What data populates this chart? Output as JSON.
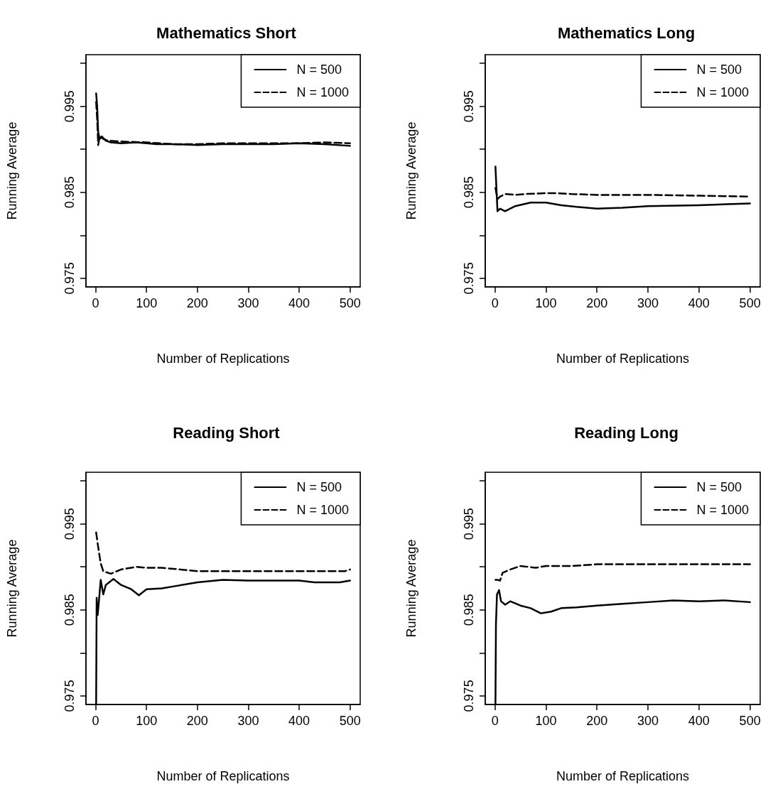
{
  "chart_data": [
    {
      "type": "line",
      "title": "Mathematics Short",
      "xlabel": "Number of Replications",
      "ylabel": "Running Average",
      "xlim": [
        -19,
        520
      ],
      "ylim": [
        0.974,
        1.001
      ],
      "xticks": [
        0,
        100,
        200,
        300,
        400,
        500
      ],
      "yticks": [
        0.975,
        {
          "value": 0.98,
          "label": null
        },
        0.985,
        {
          "value": 0.99,
          "label": null
        },
        0.995,
        {
          "value": 1.0,
          "label": null
        }
      ],
      "grid": false,
      "legend": "top right",
      "series": [
        {
          "name": "N = 500",
          "color": "#000000",
          "line_style": "solid",
          "x": [
            1,
            3,
            5,
            8,
            12,
            20,
            30,
            50,
            80,
            120,
            150,
            200,
            250,
            300,
            350,
            400,
            450,
            500
          ],
          "values": [
            0.9965,
            0.995,
            0.992,
            0.9912,
            0.9915,
            0.991,
            0.9908,
            0.9907,
            0.9908,
            0.9906,
            0.9906,
            0.9905,
            0.9906,
            0.9906,
            0.9906,
            0.9907,
            0.9906,
            0.9904
          ]
        },
        {
          "name": "N = 1000",
          "color": "#000000",
          "line_style": "dashed",
          "x": [
            1,
            3,
            5,
            8,
            15,
            25,
            50,
            100,
            150,
            200,
            250,
            300,
            400,
            450,
            500
          ],
          "values": [
            0.9955,
            0.9935,
            0.9905,
            0.9915,
            0.9912,
            0.991,
            0.9909,
            0.9908,
            0.9906,
            0.9906,
            0.9907,
            0.9907,
            0.9907,
            0.9908,
            0.9907
          ]
        }
      ]
    },
    {
      "type": "line",
      "title": "Mathematics Long",
      "xlabel": "Number of Replications",
      "ylabel": "Running Average",
      "xlim": [
        -19,
        520
      ],
      "ylim": [
        0.974,
        1.001
      ],
      "xticks": [
        0,
        100,
        200,
        300,
        400,
        500
      ],
      "yticks": [
        0.975,
        {
          "value": 0.98,
          "label": null
        },
        0.985,
        {
          "value": 0.99,
          "label": null
        },
        0.995,
        {
          "value": 1.0,
          "label": null
        }
      ],
      "grid": false,
      "legend": "top right",
      "series": [
        {
          "name": "N = 500",
          "color": "#000000",
          "line_style": "solid",
          "x": [
            1,
            5,
            10,
            20,
            40,
            70,
            100,
            130,
            160,
            200,
            250,
            300,
            400,
            500
          ],
          "values": [
            0.988,
            0.9828,
            0.9831,
            0.9828,
            0.9834,
            0.9838,
            0.9838,
            0.9835,
            0.9833,
            0.9831,
            0.9832,
            0.9834,
            0.9835,
            0.9837
          ]
        },
        {
          "name": "N = 1000",
          "color": "#000000",
          "line_style": "dashed",
          "x": [
            1,
            5,
            10,
            20,
            40,
            60,
            100,
            120,
            150,
            200,
            300,
            400,
            500
          ],
          "values": [
            0.9855,
            0.9842,
            0.9845,
            0.9848,
            0.9847,
            0.9848,
            0.9849,
            0.9849,
            0.9848,
            0.9847,
            0.9847,
            0.9846,
            0.9845
          ]
        }
      ]
    },
    {
      "type": "line",
      "title": "Reading Short",
      "xlabel": "Number of Replications",
      "ylabel": "Running Average",
      "xlim": [
        -19,
        520
      ],
      "ylim": [
        0.974,
        1.001
      ],
      "xticks": [
        0,
        100,
        200,
        300,
        400,
        500
      ],
      "yticks": [
        0.975,
        {
          "value": 0.98,
          "label": null
        },
        0.985,
        {
          "value": 0.99,
          "label": null
        },
        0.995,
        {
          "value": 1.0,
          "label": null
        }
      ],
      "grid": false,
      "legend": "top right",
      "series": [
        {
          "name": "N = 500",
          "color": "#000000",
          "line_style": "solid",
          "x": [
            1,
            2,
            4,
            6,
            10,
            15,
            20,
            35,
            50,
            70,
            85,
            100,
            130,
            160,
            200,
            250,
            300,
            400,
            430,
            480,
            500
          ],
          "values": [
            0.974,
            0.9864,
            0.9844,
            0.9857,
            0.9885,
            0.9868,
            0.9879,
            0.9886,
            0.9879,
            0.9874,
            0.9867,
            0.9874,
            0.9875,
            0.9878,
            0.9882,
            0.9885,
            0.9884,
            0.9884,
            0.9882,
            0.9882,
            0.9884
          ]
        },
        {
          "name": "N = 1000",
          "color": "#000000",
          "line_style": "dashed",
          "x": [
            1,
            5,
            10,
            15,
            30,
            50,
            80,
            100,
            130,
            200,
            300,
            400,
            490,
            500
          ],
          "values": [
            0.994,
            0.9923,
            0.9904,
            0.9895,
            0.9892,
            0.9897,
            0.99,
            0.9899,
            0.9899,
            0.9895,
            0.9895,
            0.9895,
            0.9895,
            0.9897
          ]
        }
      ]
    },
    {
      "type": "line",
      "title": "Reading Long",
      "xlabel": "Number of Replications",
      "ylabel": "Running Average",
      "xlim": [
        -19,
        520
      ],
      "ylim": [
        0.974,
        1.001
      ],
      "xticks": [
        0,
        100,
        200,
        300,
        400,
        500
      ],
      "yticks": [
        0.975,
        {
          "value": 0.98,
          "label": null
        },
        0.985,
        {
          "value": 0.99,
          "label": null
        },
        0.995,
        {
          "value": 1.0,
          "label": null
        }
      ],
      "grid": false,
      "legend": "top right",
      "series": [
        {
          "name": "N = 500",
          "color": "#000000",
          "line_style": "solid",
          "x": [
            1,
            2,
            4,
            8,
            12,
            20,
            30,
            50,
            70,
            90,
            110,
            130,
            160,
            200,
            250,
            300,
            350,
            400,
            450,
            500
          ],
          "values": [
            0.974,
            0.9833,
            0.9868,
            0.9873,
            0.986,
            0.9856,
            0.986,
            0.9855,
            0.9852,
            0.9846,
            0.9848,
            0.9852,
            0.9853,
            0.9855,
            0.9857,
            0.9859,
            0.9861,
            0.986,
            0.9861,
            0.9859
          ]
        },
        {
          "name": "N = 1000",
          "color": "#000000",
          "line_style": "dashed",
          "x": [
            1,
            5,
            10,
            15,
            30,
            50,
            80,
            100,
            150,
            200,
            300,
            400,
            500
          ],
          "values": [
            0.9885,
            0.9885,
            0.9884,
            0.9893,
            0.9897,
            0.9901,
            0.9899,
            0.9901,
            0.9901,
            0.9903,
            0.9903,
            0.9903,
            0.9903
          ]
        }
      ]
    }
  ]
}
